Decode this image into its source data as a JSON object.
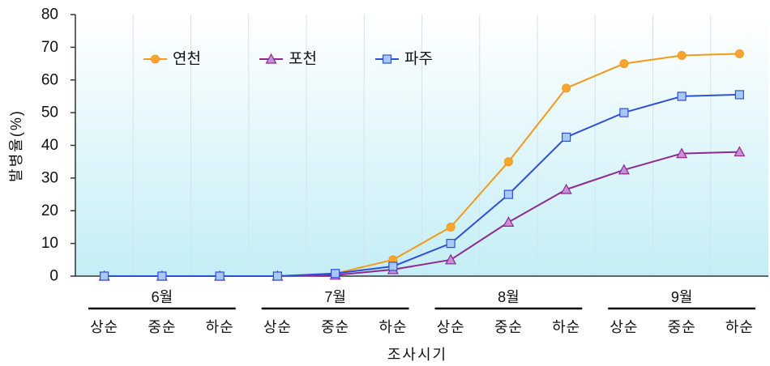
{
  "chart_data": {
    "type": "line",
    "ylabel": "발병율(%)",
    "xlabel": "조사시기",
    "ylim": [
      0,
      80
    ],
    "yticks": [
      0,
      10,
      20,
      30,
      40,
      50,
      60,
      70,
      80
    ],
    "categories": [
      "상순",
      "중순",
      "하순",
      "상순",
      "중순",
      "하순",
      "상순",
      "중순",
      "하순",
      "상순",
      "중순",
      "하순"
    ],
    "groups": [
      {
        "label": "6월",
        "from": 0,
        "to": 2
      },
      {
        "label": "7월",
        "from": 3,
        "to": 5
      },
      {
        "label": "8월",
        "from": 6,
        "to": 8
      },
      {
        "label": "9월",
        "from": 9,
        "to": 11
      }
    ],
    "series": [
      {
        "name": "연천",
        "color": "#f39a1a",
        "marker": "circle",
        "marker_fill": "#f7a531",
        "values": [
          0,
          0,
          0,
          0,
          0.8,
          5,
          15,
          35,
          57.5,
          65,
          67.5,
          68
        ]
      },
      {
        "name": "포천",
        "color": "#8e2a8e",
        "marker": "triangle",
        "marker_fill": "#c98fd8",
        "values": [
          0,
          0,
          0,
          0,
          0.3,
          2,
          5,
          16.5,
          26.5,
          32.5,
          37.5,
          38
        ]
      },
      {
        "name": "파주",
        "color": "#2f4fd6",
        "marker": "square",
        "marker_fill": "#a9c9f5",
        "values": [
          0,
          0,
          0,
          0,
          0.8,
          3,
          10,
          25,
          42.5,
          50,
          55,
          55.5
        ]
      }
    ],
    "grid": {
      "horizontal": false,
      "vertical": true
    },
    "legend": "top-left inside plot, horizontal",
    "background_colors": [
      "#ffffff",
      "#c4eef6"
    ]
  }
}
